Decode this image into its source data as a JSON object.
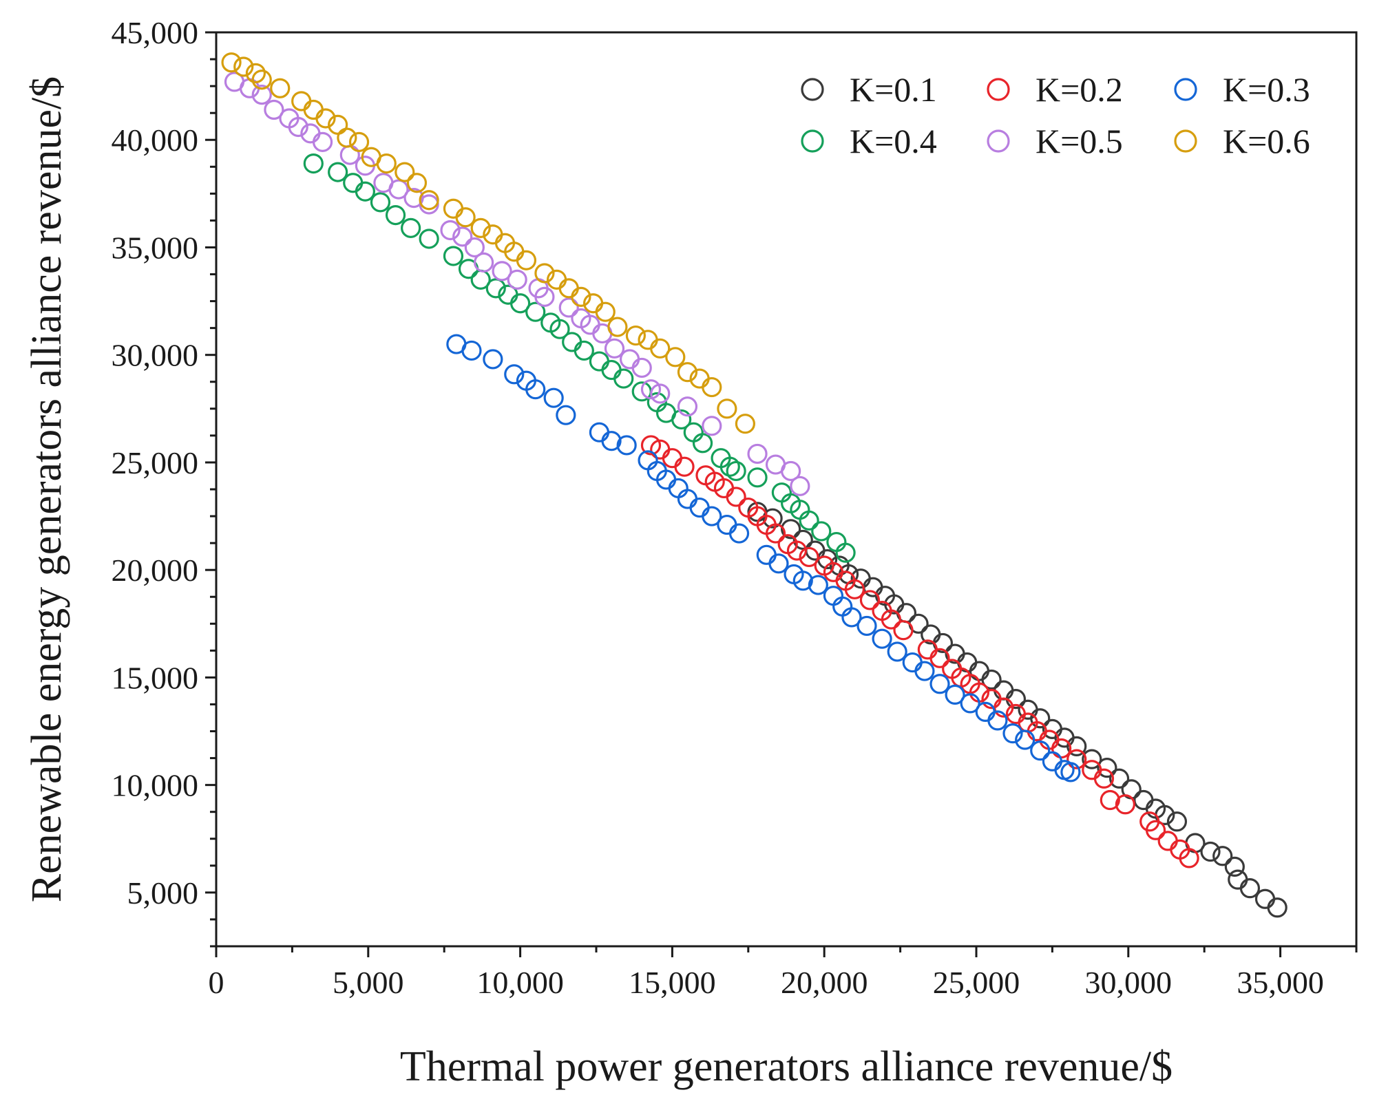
{
  "chart_data": {
    "type": "scatter",
    "title": "",
    "xlabel": "Thermal power generators alliance revenue/$",
    "ylabel": "Renewable energy generators alliance revenue/$",
    "xlim": [
      0,
      37500
    ],
    "ylim": [
      2500,
      45000
    ],
    "xticks": [
      0,
      5000,
      10000,
      15000,
      20000,
      25000,
      30000,
      35000
    ],
    "xtick_labels": [
      "0",
      "5,000",
      "10,000",
      "15,000",
      "20,000",
      "25,000",
      "30,000",
      "35,000"
    ],
    "yticks": [
      5000,
      10000,
      15000,
      20000,
      25000,
      30000,
      35000,
      40000,
      45000
    ],
    "ytick_labels": [
      "5,000",
      "10,000",
      "15,000",
      "20,000",
      "25,000",
      "30,000",
      "35,000",
      "40,000",
      "45,000"
    ],
    "grid": false,
    "legend_position": "top-right",
    "marker": "open-circle",
    "series": [
      {
        "name": "K=0.1",
        "color": "#3a3a3a",
        "points": [
          [
            17800,
            22700
          ],
          [
            18300,
            22400
          ],
          [
            18900,
            21900
          ],
          [
            19300,
            21400
          ],
          [
            19700,
            20900
          ],
          [
            20100,
            20500
          ],
          [
            20500,
            20200
          ],
          [
            20800,
            19800
          ],
          [
            21200,
            19600
          ],
          [
            21600,
            19200
          ],
          [
            22000,
            18800
          ],
          [
            22300,
            18400
          ],
          [
            22700,
            18000
          ],
          [
            23100,
            17500
          ],
          [
            23500,
            17000
          ],
          [
            23900,
            16600
          ],
          [
            24300,
            16100
          ],
          [
            24700,
            15700
          ],
          [
            25100,
            15300
          ],
          [
            25500,
            14900
          ],
          [
            25900,
            14400
          ],
          [
            26300,
            14000
          ],
          [
            26700,
            13500
          ],
          [
            27100,
            13100
          ],
          [
            27500,
            12600
          ],
          [
            27900,
            12200
          ],
          [
            28300,
            11800
          ],
          [
            28800,
            11200
          ],
          [
            29300,
            10800
          ],
          [
            29700,
            10300
          ],
          [
            30100,
            9800
          ],
          [
            30500,
            9300
          ],
          [
            30900,
            8900
          ],
          [
            31200,
            8600
          ],
          [
            31600,
            8300
          ],
          [
            32200,
            7300
          ],
          [
            32700,
            6900
          ],
          [
            33100,
            6700
          ],
          [
            33500,
            6200
          ],
          [
            33600,
            5600
          ],
          [
            34000,
            5200
          ],
          [
            34500,
            4700
          ],
          [
            34900,
            4300
          ]
        ]
      },
      {
        "name": "K=0.2",
        "color": "#e8242a",
        "points": [
          [
            14300,
            25800
          ],
          [
            14600,
            25600
          ],
          [
            15000,
            25200
          ],
          [
            15400,
            24800
          ],
          [
            16100,
            24400
          ],
          [
            16400,
            24100
          ],
          [
            16700,
            23800
          ],
          [
            17100,
            23400
          ],
          [
            17500,
            22900
          ],
          [
            17800,
            22500
          ],
          [
            18100,
            22100
          ],
          [
            18400,
            21700
          ],
          [
            18800,
            21200
          ],
          [
            19100,
            20900
          ],
          [
            19500,
            20600
          ],
          [
            20000,
            20200
          ],
          [
            20300,
            19900
          ],
          [
            20700,
            19500
          ],
          [
            21000,
            19100
          ],
          [
            21500,
            18600
          ],
          [
            21900,
            18100
          ],
          [
            22200,
            17700
          ],
          [
            22600,
            17200
          ],
          [
            23400,
            16300
          ],
          [
            23800,
            15900
          ],
          [
            24200,
            15400
          ],
          [
            24500,
            15000
          ],
          [
            24800,
            14700
          ],
          [
            25100,
            14300
          ],
          [
            25500,
            14000
          ],
          [
            25900,
            13600
          ],
          [
            26300,
            13300
          ],
          [
            26700,
            12900
          ],
          [
            27000,
            12500
          ],
          [
            27400,
            12100
          ],
          [
            27800,
            11700
          ],
          [
            28300,
            11200
          ],
          [
            28800,
            10700
          ],
          [
            29200,
            10300
          ],
          [
            29400,
            9300
          ],
          [
            29900,
            9100
          ],
          [
            30700,
            8300
          ],
          [
            30900,
            7900
          ],
          [
            31300,
            7400
          ],
          [
            31700,
            7000
          ],
          [
            32000,
            6600
          ]
        ]
      },
      {
        "name": "K=0.3",
        "color": "#1466d6",
        "points": [
          [
            7900,
            30500
          ],
          [
            8400,
            30200
          ],
          [
            9100,
            29800
          ],
          [
            9800,
            29100
          ],
          [
            10200,
            28800
          ],
          [
            10500,
            28400
          ],
          [
            11100,
            28000
          ],
          [
            11500,
            27200
          ],
          [
            12600,
            26400
          ],
          [
            13000,
            26000
          ],
          [
            13500,
            25800
          ],
          [
            14200,
            25100
          ],
          [
            14500,
            24600
          ],
          [
            14800,
            24200
          ],
          [
            15200,
            23800
          ],
          [
            15500,
            23300
          ],
          [
            15900,
            22900
          ],
          [
            16300,
            22500
          ],
          [
            16800,
            22100
          ],
          [
            17200,
            21700
          ],
          [
            18100,
            20700
          ],
          [
            18500,
            20300
          ],
          [
            19000,
            19800
          ],
          [
            19300,
            19500
          ],
          [
            19800,
            19300
          ],
          [
            20300,
            18800
          ],
          [
            20600,
            18300
          ],
          [
            20900,
            17800
          ],
          [
            21400,
            17400
          ],
          [
            21900,
            16800
          ],
          [
            22400,
            16200
          ],
          [
            22900,
            15700
          ],
          [
            23300,
            15300
          ],
          [
            23800,
            14700
          ],
          [
            24300,
            14200
          ],
          [
            24800,
            13800
          ],
          [
            25300,
            13400
          ],
          [
            25700,
            13000
          ],
          [
            26200,
            12400
          ],
          [
            26600,
            12100
          ],
          [
            27100,
            11600
          ],
          [
            27500,
            11100
          ],
          [
            27900,
            10700
          ],
          [
            28100,
            10600
          ]
        ]
      },
      {
        "name": "K=0.4",
        "color": "#15a05a",
        "points": [
          [
            3200,
            38900
          ],
          [
            4000,
            38500
          ],
          [
            4500,
            38000
          ],
          [
            4900,
            37600
          ],
          [
            5400,
            37100
          ],
          [
            5900,
            36500
          ],
          [
            6400,
            35900
          ],
          [
            7000,
            35400
          ],
          [
            7800,
            34600
          ],
          [
            8300,
            34000
          ],
          [
            8700,
            33500
          ],
          [
            9200,
            33100
          ],
          [
            9600,
            32800
          ],
          [
            10000,
            32400
          ],
          [
            10500,
            32000
          ],
          [
            11000,
            31500
          ],
          [
            11300,
            31200
          ],
          [
            11700,
            30600
          ],
          [
            12100,
            30200
          ],
          [
            12600,
            29700
          ],
          [
            13000,
            29300
          ],
          [
            13400,
            28900
          ],
          [
            14000,
            28300
          ],
          [
            14500,
            27800
          ],
          [
            14800,
            27300
          ],
          [
            15300,
            27000
          ],
          [
            15700,
            26400
          ],
          [
            16000,
            25900
          ],
          [
            16600,
            25200
          ],
          [
            16900,
            24800
          ],
          [
            17100,
            24600
          ],
          [
            17800,
            24300
          ],
          [
            18600,
            23600
          ],
          [
            18900,
            23100
          ],
          [
            19200,
            22800
          ],
          [
            19500,
            22300
          ],
          [
            19900,
            21800
          ],
          [
            20400,
            21300
          ],
          [
            20700,
            20800
          ]
        ]
      },
      {
        "name": "K=0.5",
        "color": "#b87ee0",
        "points": [
          [
            600,
            42700
          ],
          [
            1100,
            42400
          ],
          [
            1500,
            42100
          ],
          [
            1900,
            41400
          ],
          [
            2400,
            41000
          ],
          [
            2700,
            40600
          ],
          [
            3100,
            40300
          ],
          [
            3500,
            39900
          ],
          [
            4400,
            39300
          ],
          [
            4900,
            38800
          ],
          [
            5500,
            38000
          ],
          [
            6000,
            37700
          ],
          [
            6500,
            37300
          ],
          [
            7000,
            37000
          ],
          [
            7700,
            35800
          ],
          [
            8100,
            35500
          ],
          [
            8500,
            35000
          ],
          [
            8800,
            34300
          ],
          [
            9400,
            33900
          ],
          [
            9900,
            33500
          ],
          [
            10600,
            33100
          ],
          [
            10800,
            32700
          ],
          [
            11600,
            32200
          ],
          [
            12000,
            31700
          ],
          [
            12300,
            31400
          ],
          [
            12700,
            31000
          ],
          [
            13100,
            30300
          ],
          [
            13600,
            29800
          ],
          [
            14000,
            29400
          ],
          [
            14300,
            28400
          ],
          [
            14600,
            28200
          ],
          [
            15500,
            27600
          ],
          [
            16300,
            26700
          ],
          [
            17800,
            25400
          ],
          [
            18400,
            24900
          ],
          [
            18900,
            24600
          ],
          [
            19200,
            23900
          ]
        ]
      },
      {
        "name": "K=0.6",
        "color": "#d69e0e",
        "points": [
          [
            500,
            43600
          ],
          [
            900,
            43400
          ],
          [
            1300,
            43100
          ],
          [
            1500,
            42800
          ],
          [
            2100,
            42400
          ],
          [
            2800,
            41800
          ],
          [
            3200,
            41400
          ],
          [
            3600,
            41000
          ],
          [
            4000,
            40700
          ],
          [
            4300,
            40100
          ],
          [
            4700,
            39900
          ],
          [
            5100,
            39200
          ],
          [
            5600,
            38900
          ],
          [
            6200,
            38500
          ],
          [
            6600,
            38000
          ],
          [
            7000,
            37200
          ],
          [
            7800,
            36800
          ],
          [
            8200,
            36400
          ],
          [
            8700,
            35900
          ],
          [
            9100,
            35600
          ],
          [
            9500,
            35200
          ],
          [
            9800,
            34800
          ],
          [
            10200,
            34400
          ],
          [
            10800,
            33800
          ],
          [
            11200,
            33500
          ],
          [
            11600,
            33100
          ],
          [
            12000,
            32700
          ],
          [
            12400,
            32400
          ],
          [
            12800,
            32000
          ],
          [
            13200,
            31300
          ],
          [
            13800,
            30900
          ],
          [
            14200,
            30700
          ],
          [
            14600,
            30300
          ],
          [
            15100,
            29900
          ],
          [
            15500,
            29200
          ],
          [
            15900,
            28900
          ],
          [
            16300,
            28500
          ],
          [
            16800,
            27500
          ],
          [
            17400,
            26800
          ]
        ]
      }
    ]
  }
}
